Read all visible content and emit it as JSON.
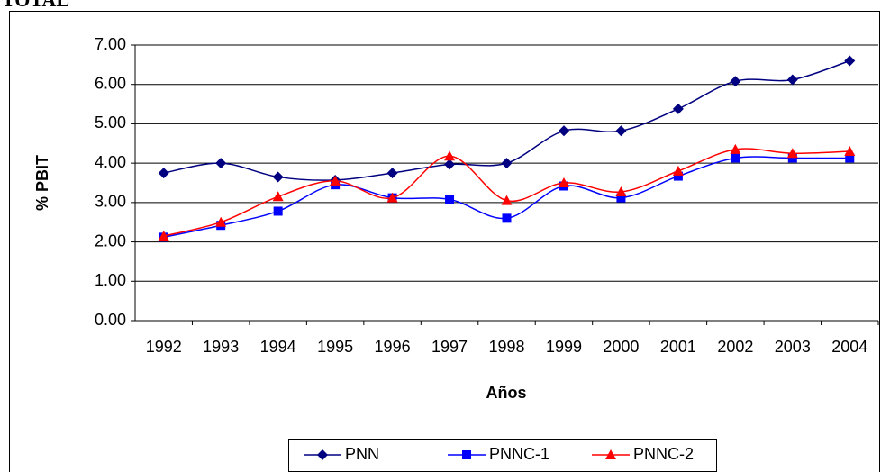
{
  "chart_data": {
    "type": "line",
    "title": "TOTAL",
    "x_label": "Años",
    "y_label": "% PBIT",
    "categories": [
      "1992",
      "1993",
      "1994",
      "1995",
      "1996",
      "1997",
      "1998",
      "1999",
      "2000",
      "2001",
      "2002",
      "2003",
      "2004"
    ],
    "series": [
      {
        "name": "PNN",
        "color": "#000080",
        "marker": "diamond",
        "values": [
          3.75,
          4.0,
          3.65,
          3.57,
          3.75,
          3.97,
          4.0,
          4.82,
          4.82,
          5.38,
          6.08,
          6.12,
          6.6
        ]
      },
      {
        "name": "PNNC-1",
        "color": "#0000ff",
        "marker": "square",
        "values": [
          2.12,
          2.42,
          2.78,
          3.45,
          3.12,
          3.08,
          2.6,
          3.42,
          3.12,
          3.67,
          4.13,
          4.13,
          4.13
        ]
      },
      {
        "name": "PNNC-2",
        "color": "#ff0000",
        "marker": "triangle",
        "values": [
          2.15,
          2.5,
          3.15,
          3.55,
          3.12,
          4.18,
          3.05,
          3.5,
          3.27,
          3.8,
          4.35,
          4.25,
          4.3
        ]
      }
    ],
    "ylim": [
      0,
      7
    ],
    "yticks": [
      {
        "value": 0,
        "label": "0.00"
      },
      {
        "value": 1,
        "label": "1.00"
      },
      {
        "value": 2,
        "label": "2.00"
      },
      {
        "value": 3,
        "label": "3.00"
      },
      {
        "value": 4,
        "label": "4.00"
      },
      {
        "value": 5,
        "label": "5.00"
      },
      {
        "value": 6,
        "label": "6.00"
      },
      {
        "value": 7,
        "label": "7.00"
      }
    ],
    "grid": true,
    "legend": "bottom"
  }
}
